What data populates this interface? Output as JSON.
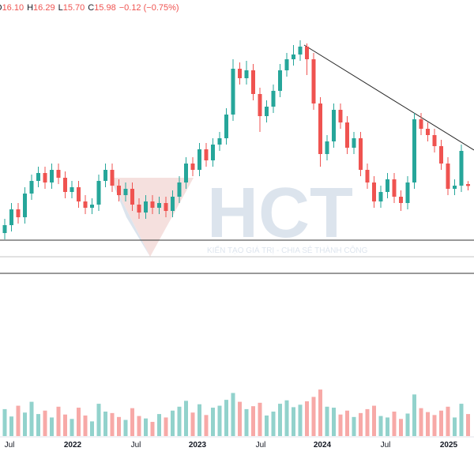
{
  "chart_data": {
    "type": "candlestick",
    "header": [
      {
        "key": "O",
        "value": "16.10"
      },
      {
        "key": "H",
        "value": "16.29"
      },
      {
        "key": "L",
        "value": "15.70"
      },
      {
        "key": "C",
        "value": "15.98"
      }
    ],
    "change": "−0.12 (−0.75%)",
    "watermark": "HCT",
    "watermark_slogan": "KIẾN TẠO GIÁ TRỊ - CHIA SẺ THÀNH CÔNG",
    "time_labels": [
      "Jul",
      "2022",
      "Jul",
      "2023",
      "Jul",
      "2024",
      "Jul",
      "2025"
    ],
    "up_color": "#26a69a",
    "down_color": "#ef5350",
    "ylim": [
      3.75,
      27.75
    ],
    "volume_lim": [
      0,
      100
    ],
    "open": [
      13.0,
      13.5,
      14.5,
      14.0,
      15.5,
      16.3,
      16.8,
      16.2,
      17.0,
      16.5,
      15.6,
      15.9,
      15.0,
      14.6,
      14.8,
      16.3,
      17.0,
      16.0,
      15.4,
      15.8,
      14.8,
      14.3,
      15.0,
      14.6,
      14.9,
      14.4,
      15.3,
      16.2,
      17.4,
      17.0,
      18.3,
      17.6,
      18.6,
      19.0,
      20.5,
      23.4,
      22.8,
      23.3,
      21.8,
      20.4,
      21.0,
      22.0,
      23.3,
      24.0,
      24.3,
      24.8,
      24.0,
      21.2,
      18.0,
      18.8,
      20.8,
      20.0,
      18.4,
      19.0,
      17.0,
      16.2,
      15.0,
      15.6,
      16.4,
      15.3,
      14.9,
      16.2,
      20.2,
      19.6,
      19.2,
      18.5,
      17.4,
      15.8,
      16.0,
      16.1
    ],
    "high": [
      13.9,
      14.9,
      14.9,
      15.9,
      16.7,
      17.2,
      17.2,
      17.4,
      17.4,
      16.9,
      16.3,
      16.3,
      15.4,
      15.2,
      16.7,
      17.4,
      17.4,
      16.4,
      16.2,
      16.2,
      15.2,
      15.4,
      15.4,
      15.3,
      15.3,
      15.7,
      16.6,
      17.8,
      17.8,
      18.7,
      18.7,
      19.0,
      19.4,
      20.9,
      24.0,
      23.8,
      23.9,
      23.7,
      22.2,
      21.4,
      22.4,
      23.7,
      24.4,
      24.9,
      25.2,
      25.0,
      24.4,
      21.6,
      19.2,
      21.2,
      21.2,
      20.4,
      19.4,
      19.4,
      17.4,
      16.6,
      16.0,
      16.8,
      16.8,
      15.7,
      16.6,
      20.6,
      20.6,
      20.0,
      19.6,
      18.9,
      17.8,
      16.4,
      18.6,
      16.29
    ],
    "low": [
      12.6,
      13.1,
      13.6,
      13.6,
      15.1,
      15.9,
      15.8,
      15.8,
      16.1,
      15.2,
      15.2,
      14.6,
      14.2,
      14.2,
      14.4,
      15.9,
      15.6,
      15.0,
      15.0,
      14.4,
      13.9,
      13.9,
      14.2,
      14.2,
      14.0,
      14.0,
      14.9,
      15.8,
      16.6,
      16.6,
      17.2,
      17.2,
      18.2,
      18.6,
      20.1,
      22.4,
      22.4,
      21.4,
      19.4,
      20.0,
      20.6,
      21.6,
      22.9,
      23.6,
      23.9,
      23.0,
      20.8,
      17.2,
      17.6,
      18.4,
      19.6,
      18.0,
      18.0,
      16.6,
      15.8,
      14.6,
      14.6,
      15.2,
      14.9,
      14.4,
      14.5,
      15.8,
      19.2,
      18.8,
      18.1,
      17.0,
      15.4,
      15.4,
      15.6,
      15.7
    ],
    "close": [
      13.5,
      14.5,
      14.0,
      15.5,
      16.3,
      16.8,
      16.2,
      17.0,
      16.5,
      15.6,
      15.9,
      15.0,
      14.6,
      14.8,
      16.3,
      17.0,
      16.0,
      15.4,
      15.8,
      14.8,
      14.3,
      15.0,
      14.6,
      14.9,
      14.4,
      15.3,
      16.2,
      17.4,
      17.0,
      18.3,
      17.6,
      18.6,
      19.0,
      20.5,
      23.4,
      22.8,
      23.3,
      21.8,
      20.4,
      21.0,
      22.0,
      23.3,
      24.0,
      24.3,
      24.8,
      24.0,
      21.2,
      18.0,
      18.8,
      20.8,
      20.0,
      18.4,
      19.0,
      17.0,
      16.2,
      15.0,
      15.6,
      16.4,
      15.3,
      14.9,
      16.2,
      20.2,
      19.6,
      19.2,
      18.5,
      17.4,
      15.8,
      16.0,
      18.2,
      15.98
    ],
    "volume": [
      55,
      40,
      62,
      48,
      70,
      45,
      52,
      38,
      60,
      44,
      35,
      58,
      42,
      30,
      66,
      50,
      47,
      39,
      33,
      57,
      41,
      36,
      29,
      45,
      38,
      52,
      60,
      72,
      48,
      65,
      43,
      58,
      62,
      74,
      88,
      70,
      55,
      61,
      68,
      42,
      50,
      66,
      73,
      59,
      64,
      71,
      80,
      95,
      60,
      58,
      44,
      52,
      39,
      47,
      55,
      62,
      41,
      38,
      50,
      35,
      46,
      85,
      57,
      49,
      43,
      52,
      60,
      38,
      66,
      45
    ]
  }
}
